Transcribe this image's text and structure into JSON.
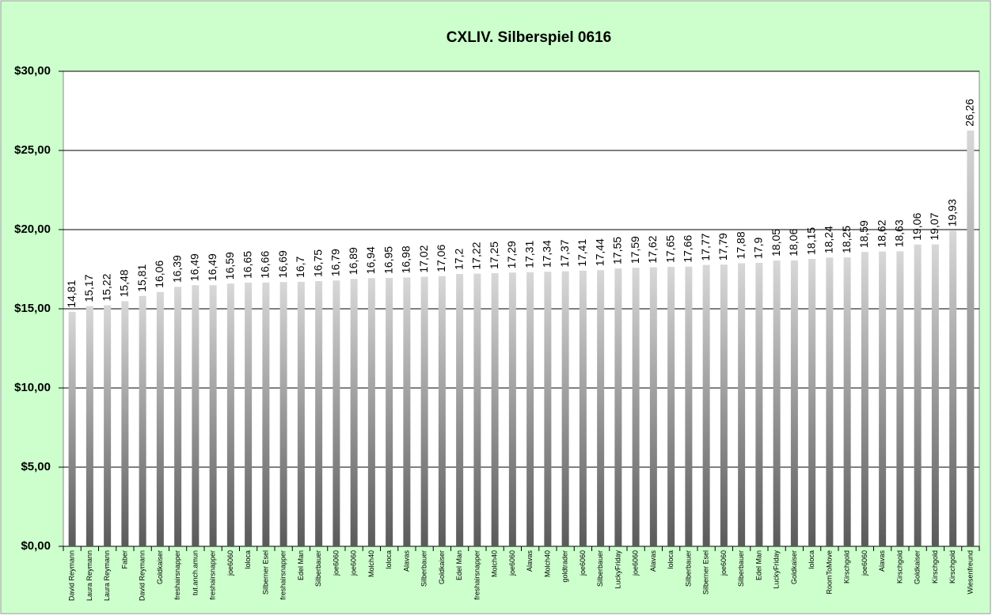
{
  "chart_data": {
    "type": "bar",
    "title": "CXLIV. Silberspiel 0616",
    "categories": [
      "David Reymann",
      "Laura Reymann",
      "Laura Reymann",
      "Faber",
      "David Reymann",
      "Goldkaiser",
      "freshairsnapper",
      "tut.anch.amun",
      "freshairsnapper",
      "joe6060",
      "loloca",
      "Silberner Esel",
      "freshairsnapper",
      "Edel Man",
      "Silberbauer",
      "joe6060",
      "joe6060",
      "Molch40",
      "loloca",
      "Alavas",
      "Silberbauer",
      "Goldkaiser",
      "Edel Man",
      "freshairsnapper",
      "Molch40",
      "joe6060",
      "Alavas",
      "Molch40",
      "goldtrader",
      "joe6060",
      "Silberbauer",
      "LuckyFriday",
      "joe6060",
      "Alavas",
      "loloca",
      "Silberbauer",
      "Silberner Esel",
      "joe6060",
      "Silberbauer",
      "Edel Man",
      "LuckyFriday",
      "Goldkaiser",
      "loloca",
      "RoomToMove",
      "Kirschgold",
      "joe6060",
      "Alavas",
      "Kirschgold",
      "Goldkaiser",
      "Kirschgold",
      "Kirschgold",
      "Wiesenfreund"
    ],
    "values": [
      14.81,
      15.17,
      15.22,
      15.48,
      15.81,
      16.06,
      16.39,
      16.49,
      16.49,
      16.59,
      16.65,
      16.66,
      16.69,
      16.7,
      16.75,
      16.79,
      16.89,
      16.94,
      16.95,
      16.98,
      17.02,
      17.06,
      17.2,
      17.22,
      17.25,
      17.29,
      17.31,
      17.34,
      17.37,
      17.41,
      17.44,
      17.55,
      17.59,
      17.62,
      17.65,
      17.66,
      17.77,
      17.79,
      17.88,
      17.9,
      18.05,
      18.06,
      18.15,
      18.24,
      18.25,
      18.59,
      18.62,
      18.63,
      19.06,
      19.07,
      19.93,
      26.26
    ],
    "value_labels": [
      "14,81",
      "15,17",
      "15,22",
      "15,48",
      "15,81",
      "16,06",
      "16,39",
      "16,49",
      "16,49",
      "16,59",
      "16,65",
      "16,66",
      "16,69",
      "16,7",
      "16,75",
      "16,79",
      "16,89",
      "16,94",
      "16,95",
      "16,98",
      "17,02",
      "17,06",
      "17,2",
      "17,22",
      "17,25",
      "17,29",
      "17,31",
      "17,34",
      "17,37",
      "17,41",
      "17,44",
      "17,55",
      "17,59",
      "17,62",
      "17,65",
      "17,66",
      "17,77",
      "17,79",
      "17,88",
      "17,9",
      "18,05",
      "18,06",
      "18,15",
      "18,24",
      "18,25",
      "18,59",
      "18,62",
      "18,63",
      "19,06",
      "19,07",
      "19,93",
      "26,26"
    ],
    "color": "#5a5a5a",
    "ylim": [
      0,
      30
    ],
    "yticks": [
      {
        "value": 0,
        "label": "$0,00"
      },
      {
        "value": 5,
        "label": "$5,00"
      },
      {
        "value": 10,
        "label": "$10,00"
      },
      {
        "value": 15,
        "label": "$15,00"
      },
      {
        "value": 20,
        "label": "$20,00"
      },
      {
        "value": 25,
        "label": "$25,00"
      },
      {
        "value": 30,
        "label": "$30,00"
      }
    ],
    "grid": true
  }
}
